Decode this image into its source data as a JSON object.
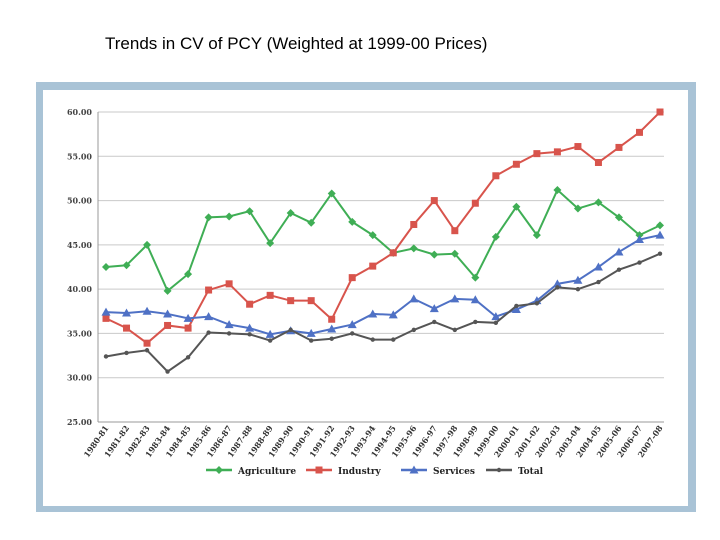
{
  "slide": {
    "title": "Trends in CV of PCY (Weighted at 1999-00 Prices)"
  },
  "chart_data": {
    "type": "line",
    "title": "",
    "xlabel": "",
    "ylabel": "",
    "ylim": [
      25,
      60
    ],
    "yticks": [
      "25.00",
      "30.00",
      "35.00",
      "40.00",
      "45.00",
      "50.00",
      "55.00",
      "60.00"
    ],
    "grid": true,
    "legend_position": "bottom",
    "categories": [
      "1980-81",
      "1981-82",
      "1982-83",
      "1983-84",
      "1984-85",
      "1985-86",
      "1986-87",
      "1987-88",
      "1988-89",
      "1989-90",
      "1990-91",
      "1991-92",
      "1992-93",
      "1993-94",
      "1994-95",
      "1995-96",
      "1996-97",
      "1997-98",
      "1998-99",
      "1999-00",
      "2000-01",
      "2001-02",
      "2002-03",
      "2003-04",
      "2004-05",
      "2005-06",
      "2006-07",
      "2007-08"
    ],
    "series": [
      {
        "name": "Agriculture",
        "color": "#3fae55",
        "marker": "diamond",
        "values": [
          42.5,
          42.7,
          45.0,
          39.8,
          41.7,
          48.1,
          48.2,
          48.8,
          45.2,
          48.6,
          47.5,
          50.8,
          47.6,
          46.1,
          44.1,
          44.6,
          43.9,
          44.0,
          41.3,
          45.9,
          49.3,
          46.1,
          51.2,
          49.1,
          49.8,
          48.1,
          46.1,
          47.2
        ]
      },
      {
        "name": "Industry",
        "color": "#d8544c",
        "marker": "square",
        "values": [
          36.7,
          35.6,
          33.9,
          35.9,
          35.6,
          39.9,
          40.6,
          38.3,
          39.3,
          38.7,
          38.7,
          36.6,
          41.3,
          42.6,
          44.1,
          47.3,
          50.0,
          46.6,
          49.7,
          52.8,
          54.1,
          55.3,
          55.5,
          56.1,
          54.3,
          56.0,
          57.7,
          60.0
        ]
      },
      {
        "name": "Services",
        "color": "#4f71c5",
        "marker": "triangle",
        "values": [
          37.4,
          37.3,
          37.5,
          37.2,
          36.7,
          36.9,
          36.0,
          35.6,
          34.9,
          35.3,
          35.0,
          35.5,
          36.0,
          37.2,
          37.1,
          38.9,
          37.8,
          38.9,
          38.8,
          36.9,
          37.7,
          38.7,
          40.6,
          41.0,
          42.5,
          44.2,
          45.6,
          46.1
        ]
      },
      {
        "name": "Total",
        "color": "#555555",
        "marker": "circle",
        "values": [
          32.4,
          32.8,
          33.1,
          30.7,
          32.3,
          35.1,
          35.0,
          34.9,
          34.2,
          35.4,
          34.2,
          34.4,
          35.0,
          34.3,
          34.3,
          35.4,
          36.3,
          35.4,
          36.3,
          36.2,
          38.1,
          38.4,
          40.2,
          40.0,
          40.8,
          42.2,
          43.0,
          44.0
        ]
      }
    ]
  }
}
